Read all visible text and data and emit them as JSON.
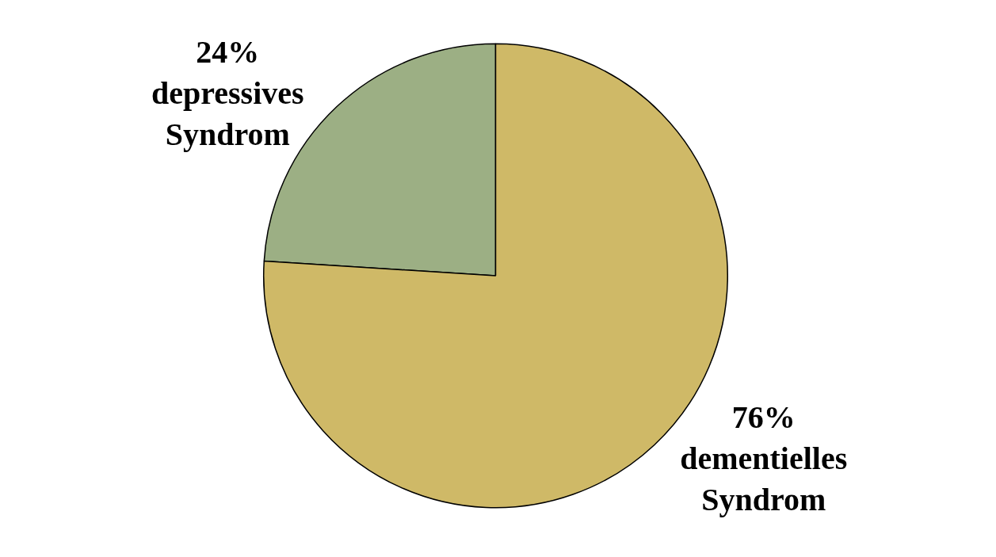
{
  "chart_data": {
    "type": "pie",
    "categories": [
      "depressives Syndrom",
      "dementielles Syndrom"
    ],
    "values": [
      24,
      76
    ],
    "colors": [
      "#9caf84",
      "#cfb967"
    ],
    "value_labels": [
      "24%",
      "76%"
    ]
  }
}
